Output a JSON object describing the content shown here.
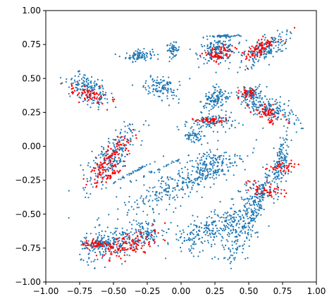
{
  "chart_data": {
    "type": "scatter",
    "title": "",
    "xlabel": "",
    "ylabel": "",
    "xlim": [
      -1.0,
      1.0
    ],
    "ylim": [
      -1.0,
      1.0
    ],
    "grid": false,
    "x_ticks": [
      -1.0,
      -0.75,
      -0.5,
      -0.25,
      0.0,
      0.25,
      0.5,
      0.75,
      1.0
    ],
    "x_tick_labels": [
      "−1.00",
      "−0.75",
      "−0.50",
      "−0.25",
      "0.00",
      "0.25",
      "0.50",
      "0.75",
      "1.00"
    ],
    "y_ticks": [
      -1.0,
      -0.75,
      -0.5,
      -0.25,
      0.0,
      0.25,
      0.5,
      0.75,
      1.0
    ],
    "y_tick_labels": [
      "−1.00",
      "−0.75",
      "−0.50",
      "−0.25",
      "0.00",
      "0.25",
      "0.50",
      "0.75",
      "1.00"
    ],
    "series": [
      {
        "color": "#1f77b4",
        "clusters": [
          {
            "center": [
              -0.68,
              0.42
            ],
            "spread": [
              0.05,
              0.09
            ],
            "angle": 60,
            "count": 170
          },
          {
            "center": [
              -0.31,
              0.67
            ],
            "spread": [
              0.05,
              0.02
            ],
            "angle": 5,
            "count": 90
          },
          {
            "center": [
              -0.06,
              0.71
            ],
            "spread": [
              0.025,
              0.025
            ],
            "angle": 0,
            "count": 50
          },
          {
            "center": [
              -0.13,
              0.43
            ],
            "spread": [
              0.045,
              0.07
            ],
            "angle": 80,
            "count": 110
          },
          {
            "center": [
              0.27,
              0.71
            ],
            "spread": [
              0.07,
              0.04
            ],
            "angle": 10,
            "count": 160
          },
          {
            "center": [
              0.31,
              0.81
            ],
            "spread": [
              0.07,
              0.006
            ],
            "angle": 3,
            "count": 50
          },
          {
            "center": [
              0.61,
              0.71
            ],
            "spread": [
              0.1,
              0.04
            ],
            "angle": 30,
            "count": 170
          },
          {
            "center": [
              0.26,
              0.35
            ],
            "spread": [
              0.05,
              0.04
            ],
            "angle": 40,
            "count": 120
          },
          {
            "center": [
              0.51,
              0.38
            ],
            "spread": [
              0.05,
              0.03
            ],
            "angle": 10,
            "count": 100
          },
          {
            "center": [
              0.67,
              0.27
            ],
            "spread": [
              0.04,
              0.09
            ],
            "angle": 70,
            "count": 160
          },
          {
            "center": [
              0.24,
              0.18
            ],
            "spread": [
              0.08,
              0.03
            ],
            "angle": 0,
            "count": 110
          },
          {
            "center": [
              0.1,
              0.07
            ],
            "spread": [
              0.03,
              0.05
            ],
            "angle": 70,
            "count": 60
          },
          {
            "center": [
              -0.52,
              -0.08
            ],
            "spread": [
              0.13,
              0.05
            ],
            "angle": 48,
            "count": 220
          },
          {
            "center": [
              -0.37,
              -0.2
            ],
            "spread": [
              0.13,
              0.005
            ],
            "angle": 28,
            "count": 40
          },
          {
            "center": [
              -0.15,
              -0.16
            ],
            "spread": [
              0.1,
              0.005
            ],
            "angle": 25,
            "count": 30
          },
          {
            "center": [
              0.02,
              -0.27
            ],
            "spread": [
              0.26,
              0.06
            ],
            "angle": 25,
            "count": 260
          },
          {
            "center": [
              0.2,
              -0.13
            ],
            "spread": [
              0.08,
              0.05
            ],
            "angle": 20,
            "count": 120
          },
          {
            "center": [
              0.12,
              -0.24
            ],
            "spread": [
              0.15,
              0.005
            ],
            "angle": 20,
            "count": 30
          },
          {
            "center": [
              0.59,
              -0.37
            ],
            "spread": [
              0.08,
              0.02
            ],
            "angle": 75,
            "count": 80
          },
          {
            "center": [
              0.73,
              -0.15
            ],
            "spread": [
              0.12,
              0.03
            ],
            "angle": 80,
            "count": 140
          },
          {
            "center": [
              0.47,
              -0.54
            ],
            "spread": [
              0.17,
              0.06
            ],
            "angle": 70,
            "count": 260
          },
          {
            "center": [
              0.2,
              -0.62
            ],
            "spread": [
              0.13,
              0.06
            ],
            "angle": 25,
            "count": 220
          },
          {
            "center": [
              -0.52,
              -0.72
            ],
            "spread": [
              0.12,
              0.06
            ],
            "angle": 15,
            "count": 200
          },
          {
            "center": [
              -0.27,
              -0.64
            ],
            "spread": [
              0.07,
              0.04
            ],
            "angle": 15,
            "count": 110
          },
          {
            "center": [
              -0.61,
              -0.72
            ],
            "spread": [
              0.02,
              0.05
            ],
            "angle": 90,
            "count": 50
          }
        ]
      },
      {
        "color": "#ff0000",
        "clusters": [
          {
            "center": [
              -0.68,
              0.38
            ],
            "spread": [
              0.03,
              0.08
            ],
            "angle": 75,
            "count": 60
          },
          {
            "center": [
              0.28,
              0.68
            ],
            "spread": [
              0.06,
              0.03
            ],
            "angle": 10,
            "count": 70
          },
          {
            "center": [
              0.58,
              0.72
            ],
            "spread": [
              0.07,
              0.025
            ],
            "angle": 35,
            "count": 80
          },
          {
            "center": [
              0.5,
              0.39
            ],
            "spread": [
              0.03,
              0.02
            ],
            "angle": 10,
            "count": 35
          },
          {
            "center": [
              0.64,
              0.24
            ],
            "spread": [
              0.03,
              0.06
            ],
            "angle": 70,
            "count": 60
          },
          {
            "center": [
              0.22,
              0.19
            ],
            "spread": [
              0.06,
              0.01
            ],
            "angle": 0,
            "count": 40
          },
          {
            "center": [
              -0.53,
              -0.1
            ],
            "spread": [
              0.11,
              0.035
            ],
            "angle": 48,
            "count": 110
          },
          {
            "center": [
              -0.52,
              -0.22
            ],
            "spread": [
              0.06,
              0.01
            ],
            "angle": 30,
            "count": 30
          },
          {
            "center": [
              0.62,
              -0.32
            ],
            "spread": [
              0.03,
              0.07
            ],
            "angle": 75,
            "count": 45
          },
          {
            "center": [
              0.73,
              -0.15
            ],
            "spread": [
              0.02,
              0.06
            ],
            "angle": 90,
            "count": 35
          },
          {
            "center": [
              -0.63,
              -0.72
            ],
            "spread": [
              0.015,
              0.05
            ],
            "angle": 90,
            "count": 45
          },
          {
            "center": [
              -0.38,
              -0.72
            ],
            "spread": [
              0.12,
              0.04
            ],
            "angle": 20,
            "count": 110
          }
        ]
      }
    ]
  }
}
